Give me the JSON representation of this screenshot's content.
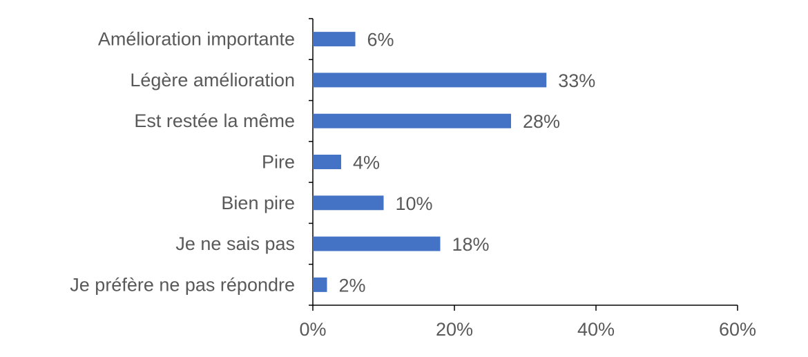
{
  "chart_data": {
    "type": "bar",
    "orientation": "horizontal",
    "categories": [
      "Amélioration importante",
      "Légère amélioration",
      "Est restée la même",
      "Pire",
      "Bien pire",
      "Je ne sais pas",
      "Je préfère ne pas répondre"
    ],
    "values": [
      6,
      33,
      28,
      4,
      10,
      18,
      2
    ],
    "value_labels": [
      "6%",
      "33%",
      "28%",
      "4%",
      "10%",
      "18%",
      "2%"
    ],
    "xlim": [
      0,
      60
    ],
    "xticks": [
      0,
      20,
      40,
      60
    ],
    "xtick_labels": [
      "0%",
      "20%",
      "40%",
      "60%"
    ],
    "title": "",
    "xlabel": "",
    "ylabel": "",
    "grid": false,
    "legend": "none",
    "bar_color": "#4472C4",
    "axis_color": "#000000",
    "text_color": "#595959"
  }
}
